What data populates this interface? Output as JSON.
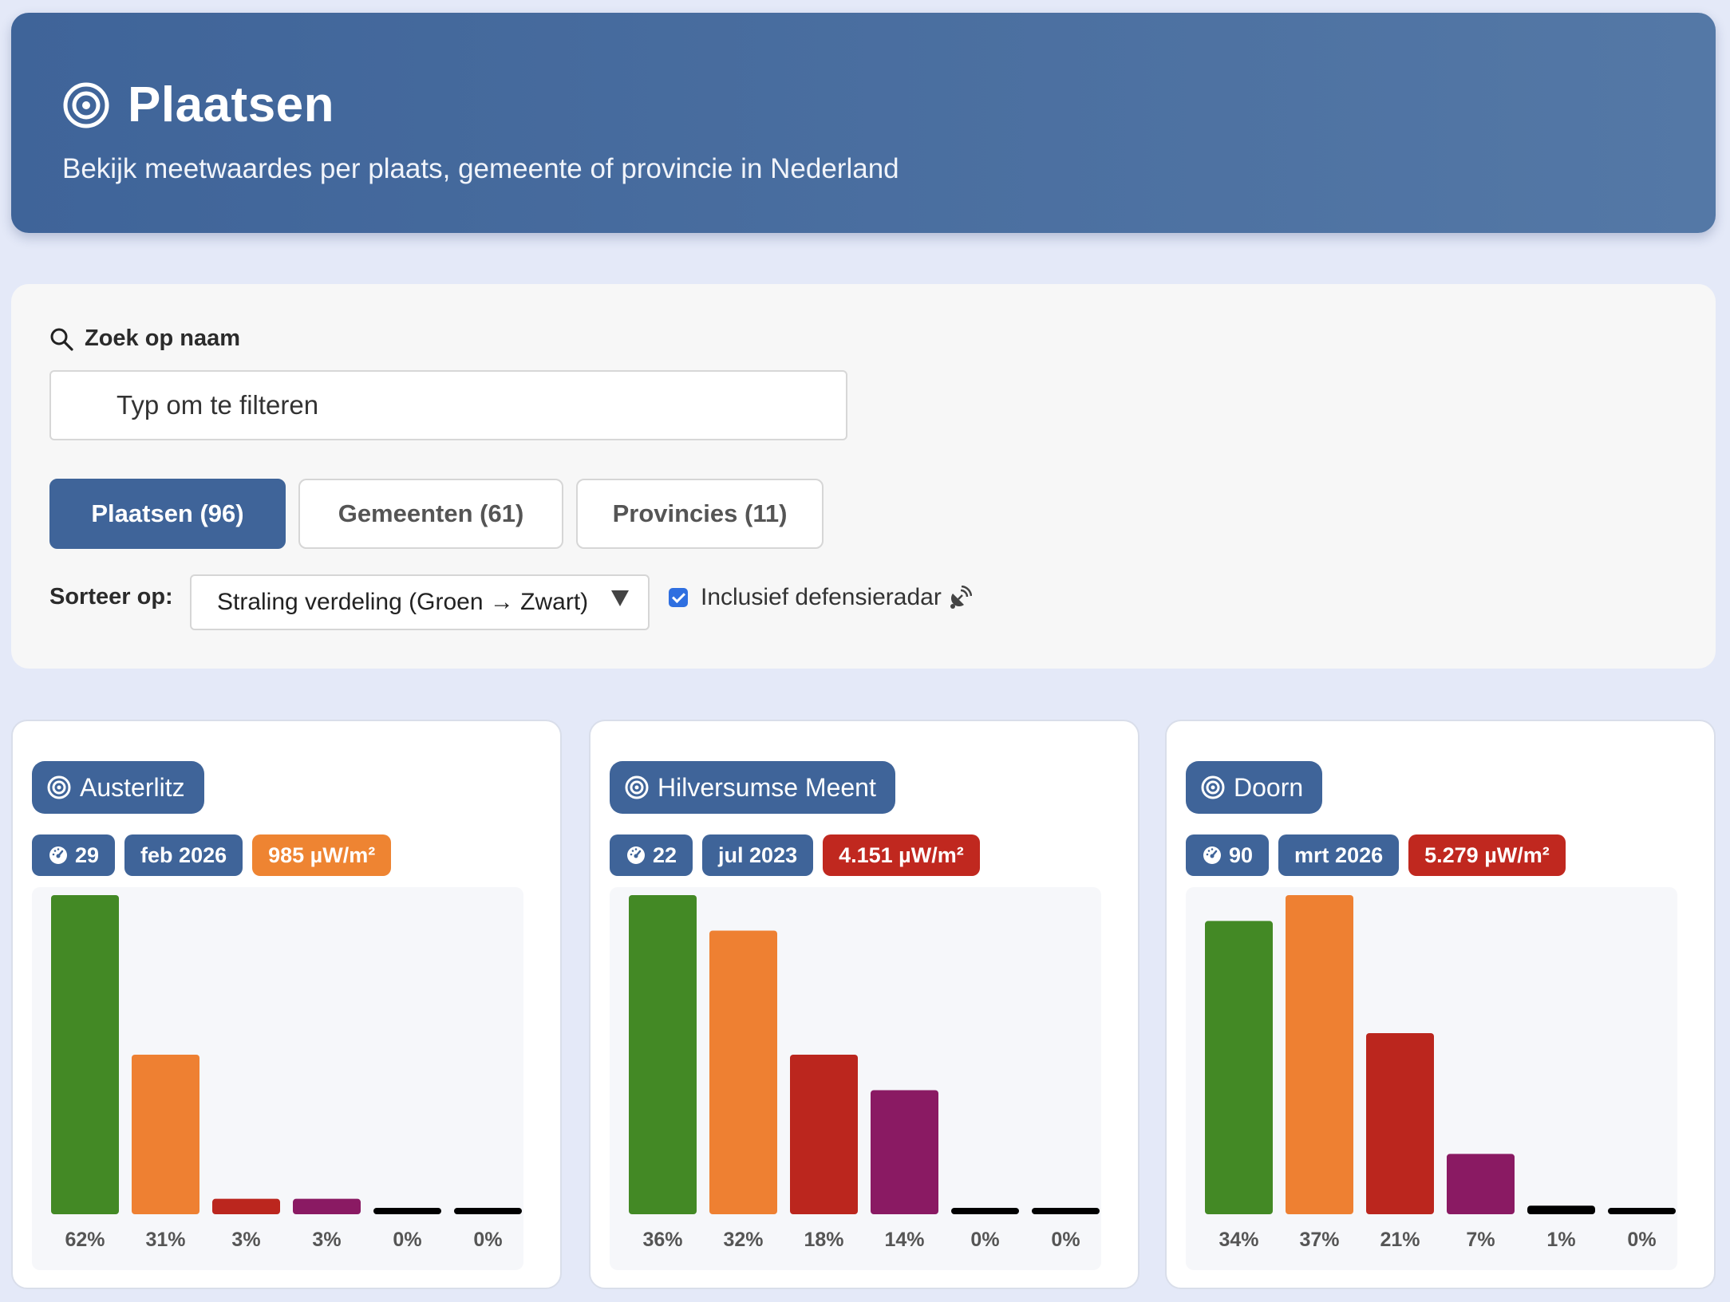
{
  "header": {
    "title": "Plaatsen",
    "subtitle": "Bekijk meetwaardes per plaats, gemeente of provincie in Nederland"
  },
  "search": {
    "label": "Zoek op naam",
    "placeholder": "Typ om te filteren",
    "value": ""
  },
  "tabs": [
    {
      "label": "Plaatsen (96)",
      "active": true
    },
    {
      "label": "Gemeenten (61)",
      "active": false
    },
    {
      "label": "Provincies (11)",
      "active": false
    }
  ],
  "sort": {
    "label": "Sorteer op:",
    "selected": "Straling verdeling (Groen → Zwart)"
  },
  "radar_filter": {
    "label": "Inclusief defensieradar",
    "checked": true
  },
  "colors": {
    "primary": "#3f6499",
    "green": "#438925",
    "orange": "#ee8032",
    "red": "#bb261e",
    "purple": "#8a1a63",
    "black": "#000000"
  },
  "cards": [
    {
      "name": "Austerlitz",
      "count": "29",
      "date": "feb 2026",
      "value": "985 µW/m²",
      "value_level": "orange",
      "chart_data": {
        "type": "bar",
        "categories": [
          "Groen",
          "Oranje",
          "Rood",
          "Paars",
          "Zwart",
          "Zwart"
        ],
        "values": [
          62,
          31,
          3,
          3,
          0,
          0
        ],
        "labels": [
          "62%",
          "31%",
          "3%",
          "3%",
          "0%",
          "0%"
        ],
        "colors": [
          "#438925",
          "#ee8032",
          "#bb261e",
          "#8a1a63",
          "#000000",
          "#000000"
        ]
      }
    },
    {
      "name": "Hilversumse Meent",
      "count": "22",
      "date": "jul 2023",
      "value": "4.151 µW/m²",
      "value_level": "red",
      "chart_data": {
        "type": "bar",
        "categories": [
          "Groen",
          "Oranje",
          "Rood",
          "Paars",
          "Zwart",
          "Zwart"
        ],
        "values": [
          36,
          32,
          18,
          14,
          0,
          0
        ],
        "labels": [
          "36%",
          "32%",
          "18%",
          "14%",
          "0%",
          "0%"
        ],
        "colors": [
          "#438925",
          "#ee8032",
          "#bb261e",
          "#8a1a63",
          "#000000",
          "#000000"
        ]
      }
    },
    {
      "name": "Doorn",
      "count": "90",
      "date": "mrt 2026",
      "value": "5.279 µW/m²",
      "value_level": "red",
      "chart_data": {
        "type": "bar",
        "categories": [
          "Groen",
          "Oranje",
          "Rood",
          "Paars",
          "Zwart",
          "Zwart"
        ],
        "values": [
          34,
          37,
          21,
          7,
          1,
          0
        ],
        "labels": [
          "34%",
          "37%",
          "21%",
          "7%",
          "1%",
          "0%"
        ],
        "colors": [
          "#438925",
          "#ee8032",
          "#bb261e",
          "#8a1a63",
          "#000000",
          "#000000"
        ]
      }
    }
  ]
}
